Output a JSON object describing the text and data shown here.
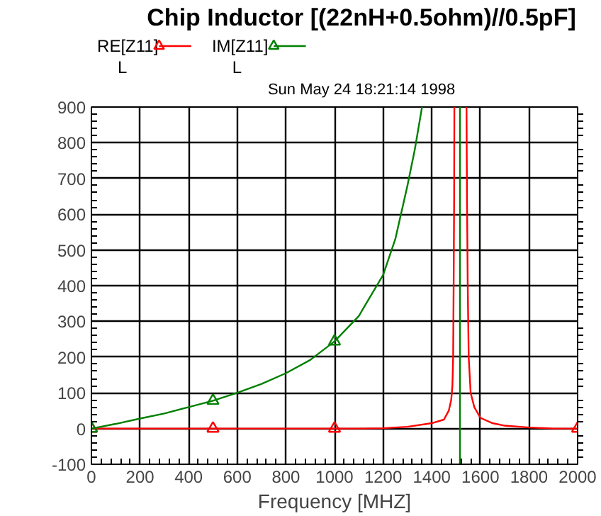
{
  "chart_data": {
    "type": "line",
    "title": "Chip Inductor [(22nH+0.5ohm)//0.5pF]",
    "subtitle": "Sun May 24 18:21:14 1998",
    "xlabel": "Frequency [MHZ]",
    "xlim": [
      0,
      2000
    ],
    "ylim": [
      -100,
      900
    ],
    "xticks": [
      0,
      200,
      400,
      600,
      800,
      1000,
      1200,
      1400,
      1600,
      1800,
      2000
    ],
    "yticks": [
      -100,
      0,
      100,
      200,
      300,
      400,
      500,
      600,
      700,
      800,
      900
    ],
    "grid": true,
    "legend": "top left",
    "annotations": [
      "L",
      "L"
    ],
    "series": [
      {
        "name": "RE[Z11]",
        "color": "#ff0000",
        "x": [
          0,
          200,
          400,
          600,
          800,
          1000,
          1100,
          1200,
          1300,
          1400,
          1450,
          1470,
          1480,
          1485,
          1488,
          1490,
          1492,
          1493,
          1518,
          1543,
          1545,
          1548,
          1552,
          1560,
          1575,
          1600,
          1650,
          1700,
          1800,
          1900,
          2000
        ],
        "values": [
          0,
          0,
          0,
          0,
          0,
          0,
          0,
          1,
          5,
          15,
          25,
          50,
          80,
          120,
          200,
          400,
          640,
          900,
          null,
          900,
          640,
          400,
          200,
          100,
          60,
          30,
          15,
          8,
          3,
          0,
          0
        ]
      },
      {
        "name": "IM[Z11]",
        "color": "#008000",
        "x": [
          0,
          100,
          200,
          300,
          400,
          500,
          600,
          700,
          800,
          900,
          1000,
          1100,
          1200,
          1250,
          1300,
          1330,
          1360,
          1438,
          1516,
          1516
        ],
        "values": [
          0,
          13,
          28,
          42,
          60,
          78,
          100,
          125,
          155,
          192,
          244,
          315,
          430,
          530,
          680,
          780,
          900,
          null,
          900,
          -100
        ]
      },
      {
        "type": "scatter",
        "color": "#ff0000",
        "marker": "triangle",
        "x": [
          0,
          500,
          1000,
          2000
        ],
        "values": [
          0,
          0,
          0,
          0
        ]
      },
      {
        "type": "scatter",
        "color": "#008000",
        "marker": "triangle",
        "x": [
          0,
          500,
          1000
        ],
        "values": [
          0,
          78,
          244
        ]
      }
    ]
  }
}
